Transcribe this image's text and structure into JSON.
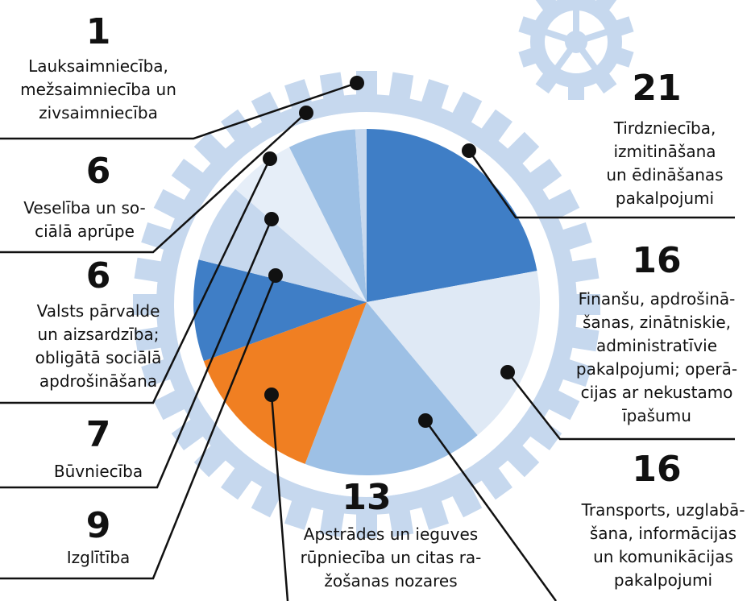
{
  "chart_data": {
    "type": "pie",
    "categories": [
      "Tirdzniecība,\nizmitināšana\nun ēdināšanas\npakalpojumi",
      "Finanšu, apdrošinā-\nšanas, zinātniskie,\nadministratīvie\npakalpojumi; operā-\ncijas ar nekustamo\nīpašumu",
      "Transports, uzglabā-\nšana, informācijas\nun komunikācijas\npakalpojumi",
      "Apstrādes un ieguves\nrūpniecība un citas ra-\nžošanas nozares",
      "Izglītība",
      "Būvniecība",
      "Valsts pārvalde\nun aizsardzība;\nobligātā sociālā\napdrošināšana",
      "Veselība un so-\nciālā aprūpe",
      "Lauksaimniecība,\nmežsaimniecība un\nzivsaimniecība"
    ],
    "values": [
      21,
      16,
      16,
      13,
      9,
      7,
      6,
      6,
      1
    ],
    "colors": [
      "#3f7ec6",
      "#dfe9f5",
      "#9dc0e5",
      "#f07f22",
      "#3f7ec6",
      "#c6d8ee",
      "#e6eef8",
      "#9dc0e5",
      "#c6d8ee"
    ]
  }
}
